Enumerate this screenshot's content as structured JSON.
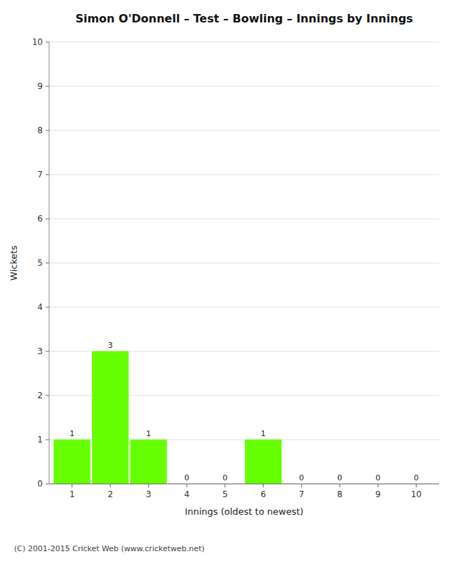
{
  "chart_data": {
    "type": "bar",
    "title": "Simon O'Donnell – Test – Bowling – Innings by Innings",
    "x_label": "Innings (oldest to newest)",
    "y_label": "Wickets",
    "categories": [
      1,
      2,
      3,
      4,
      5,
      6,
      7,
      8,
      9,
      10
    ],
    "values": [
      1,
      3,
      1,
      0,
      0,
      1,
      0,
      0,
      0,
      0
    ],
    "color": "#66ff00",
    "ylim": [
      0,
      10
    ],
    "yticks": [
      0,
      1,
      2,
      3,
      4,
      5,
      6,
      7,
      8,
      9,
      10
    ],
    "grid": true,
    "data_labels": true,
    "annotations": [
      "(C) 2001-2015 Cricket Web (www.cricketweb.net)"
    ]
  }
}
